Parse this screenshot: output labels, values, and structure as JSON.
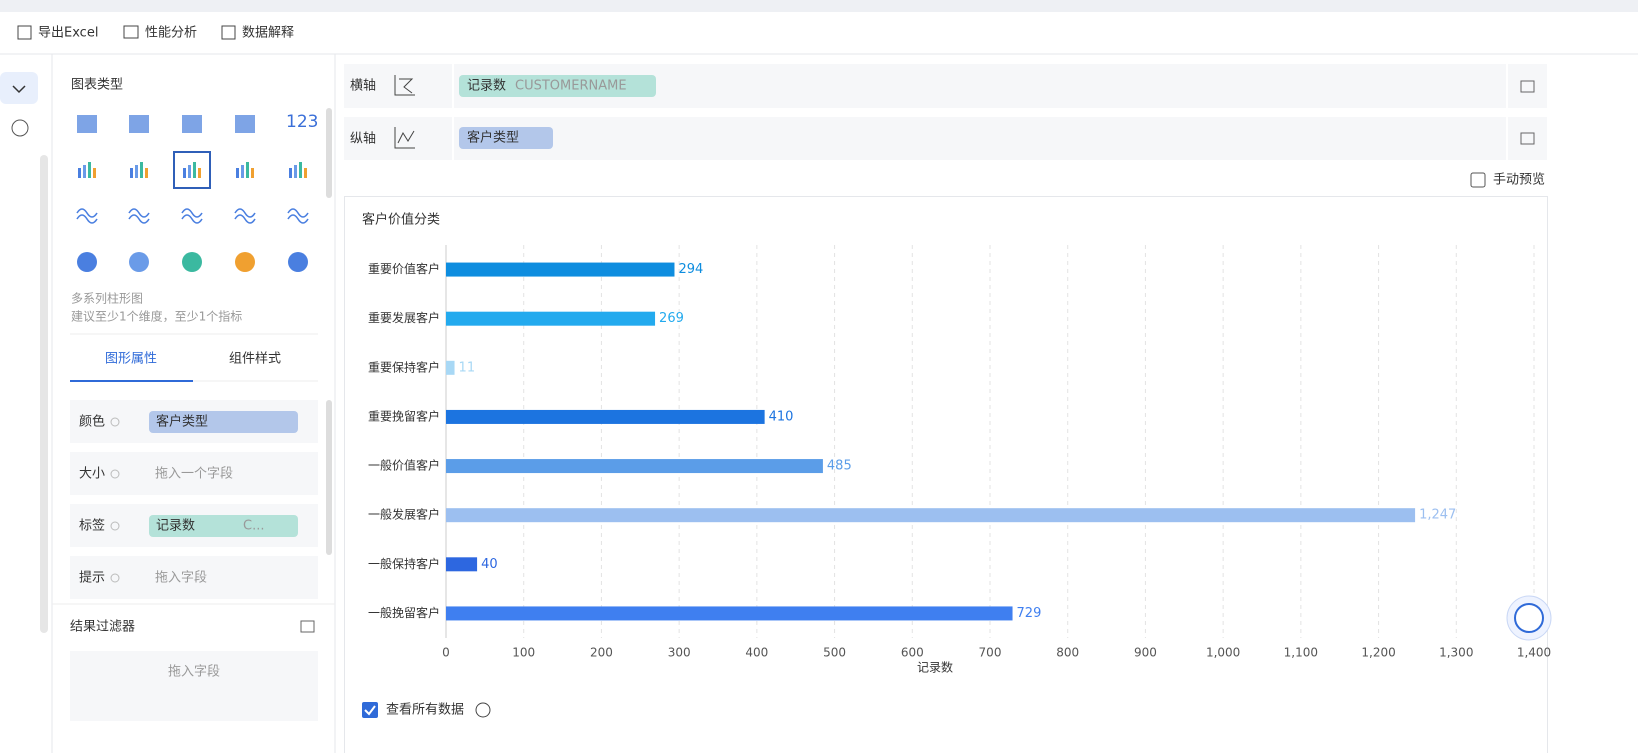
{
  "toolbar": [
    "导出Excel",
    "性能分析",
    "数据解释"
  ],
  "chart_types": {
    "title": "图表类型",
    "number_icon": "123",
    "selected_name": "多系列柱形图",
    "hint": "建议至少1个维度，至少1个指标"
  },
  "tabs": [
    "图形属性",
    "组件样式"
  ],
  "properties": [
    {
      "label": "颜色",
      "value": "客户类型"
    },
    {
      "label": "大小",
      "placeholder": "拖入一个字段"
    },
    {
      "label": "标签",
      "value": "记录数",
      "extra": "C..."
    },
    {
      "label": "提示",
      "placeholder": "拖入字段"
    }
  ],
  "filter": {
    "title": "结果过滤器",
    "placeholder": "拖入字段"
  },
  "axes": {
    "x": {
      "label": "横轴",
      "field": "记录数",
      "sub": "CUSTOMERNAME"
    },
    "y": {
      "label": "纵轴",
      "field": "客户类型"
    }
  },
  "manual_preview": "手动预览",
  "show_all": "查看所有数据",
  "chart_data": {
    "type": "bar",
    "orientation": "horizontal",
    "title": "客户价值分类",
    "xlabel": "记录数",
    "categories": [
      "重要价值客户",
      "重要发展客户",
      "重要保持客户",
      "重要挽留客户",
      "一般价值客户",
      "一般发展客户",
      "一般保持客户",
      "一般挽留客户"
    ],
    "values": [
      294,
      269,
      11,
      410,
      485,
      1247,
      40,
      729
    ],
    "value_labels": [
      "294",
      "269",
      "11",
      "410",
      "485",
      "1,247",
      "40",
      "729"
    ],
    "colors": [
      "#0e8ddf",
      "#23aaee",
      "#a8d8f5",
      "#1c74e0",
      "#5b9de8",
      "#9cbff0",
      "#2d67e0",
      "#3f7ff0"
    ],
    "xlim": [
      0,
      1400
    ],
    "xticks": [
      0,
      100,
      200,
      300,
      400,
      500,
      600,
      700,
      800,
      900,
      {
        "value": 1000,
        "label": "1,000"
      },
      {
        "value": 1100,
        "label": "1,100"
      },
      {
        "value": 1200,
        "label": "1,200"
      },
      {
        "value": 1300,
        "label": "1,300"
      },
      {
        "value": 1400,
        "label": "1,400"
      }
    ],
    "grid": true
  }
}
